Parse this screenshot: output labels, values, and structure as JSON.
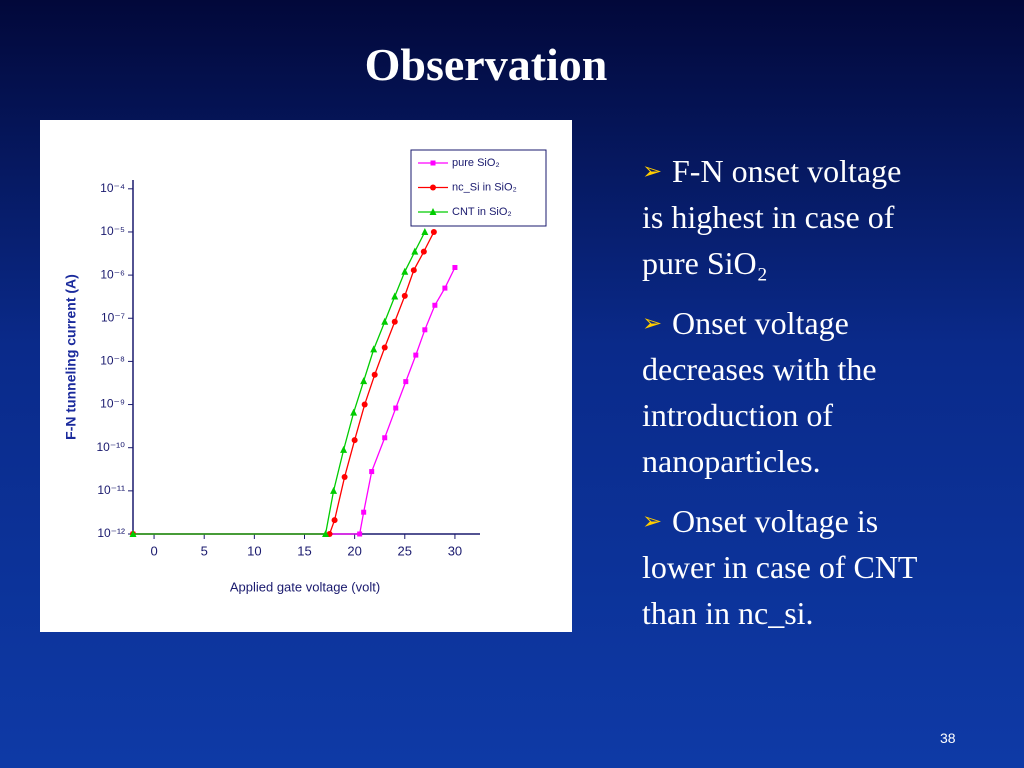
{
  "title": "Observation",
  "bullets": [
    {
      "lines": [
        "F-N onset voltage",
        "is highest in case of",
        "pure SiO₂"
      ]
    },
    {
      "lines": [
        "Onset voltage",
        "decreases with the",
        "introduction of",
        "nanoparticles."
      ]
    },
    {
      "lines": [
        "Onset voltage is",
        "lower in case of CNT",
        "than in nc_si."
      ]
    }
  ],
  "page_number": "38",
  "chart_data": {
    "type": "line",
    "y_label": "F-N tunneling current (A)",
    "x_label": "Applied gate voltage (volt)",
    "log_y": true,
    "xlim": [
      -2.1,
      32.5
    ],
    "ylim": [
      1e-12,
      0.00016
    ],
    "xticks": [
      0,
      5,
      10,
      15,
      20,
      25,
      30
    ],
    "yticks": [
      {
        "value": 1e-12,
        "label": "10⁻¹²"
      },
      {
        "value": 1e-11,
        "label": "10⁻¹¹"
      },
      {
        "value": 1e-10,
        "label": "10⁻¹⁰"
      },
      {
        "value": 1e-09,
        "label": "10⁻⁹"
      },
      {
        "value": 1e-08,
        "label": "10⁻⁸"
      },
      {
        "value": 1e-07,
        "label": "10⁻⁷"
      },
      {
        "value": 1e-06,
        "label": "10⁻⁶"
      },
      {
        "value": 1e-05,
        "label": "10⁻⁵"
      },
      {
        "value": 0.0001,
        "label": "10⁻⁴"
      }
    ],
    "series": [
      {
        "name": "pure SiO₂",
        "color": "#ff00ff",
        "marker": "square",
        "x": [
          -2.1,
          20.5,
          20.9,
          21.7,
          23.0,
          24.1,
          25.1,
          26.1,
          27.0,
          28.0,
          29.0,
          30.0
        ],
        "values": [
          1e-12,
          1e-12,
          3.2e-12,
          2.8e-11,
          1.7e-10,
          8.3e-10,
          3.4e-09,
          1.4e-08,
          5.4e-08,
          2e-07,
          5e-07,
          1.5e-06
        ]
      },
      {
        "name": "nc_Si in SiO₂",
        "color": "#ff0000",
        "marker": "circle",
        "x": [
          -2.1,
          17.5,
          18.0,
          19.0,
          20.0,
          21.0,
          22.0,
          23.0,
          24.0,
          25.0,
          25.9,
          26.9,
          27.9
        ],
        "values": [
          1e-12,
          1e-12,
          2.1e-12,
          2.1e-11,
          1.5e-10,
          1e-09,
          4.9e-09,
          2.1e-08,
          8.3e-08,
          3.3e-07,
          1.3e-06,
          3.5e-06,
          1e-05
        ]
      },
      {
        "name": "CNT in SiO₂",
        "color": "#00cc00",
        "marker": "triangle",
        "x": [
          -2.1,
          17.1,
          17.9,
          18.9,
          19.9,
          20.9,
          21.9,
          23.0,
          24.0,
          25.0,
          26.0,
          27.0
        ],
        "values": [
          1e-12,
          1e-12,
          1e-11,
          8.9e-11,
          6.5e-10,
          3.5e-09,
          1.9e-08,
          8.3e-08,
          3.2e-07,
          1.2e-06,
          3.5e-06,
          1e-05
        ]
      }
    ]
  }
}
